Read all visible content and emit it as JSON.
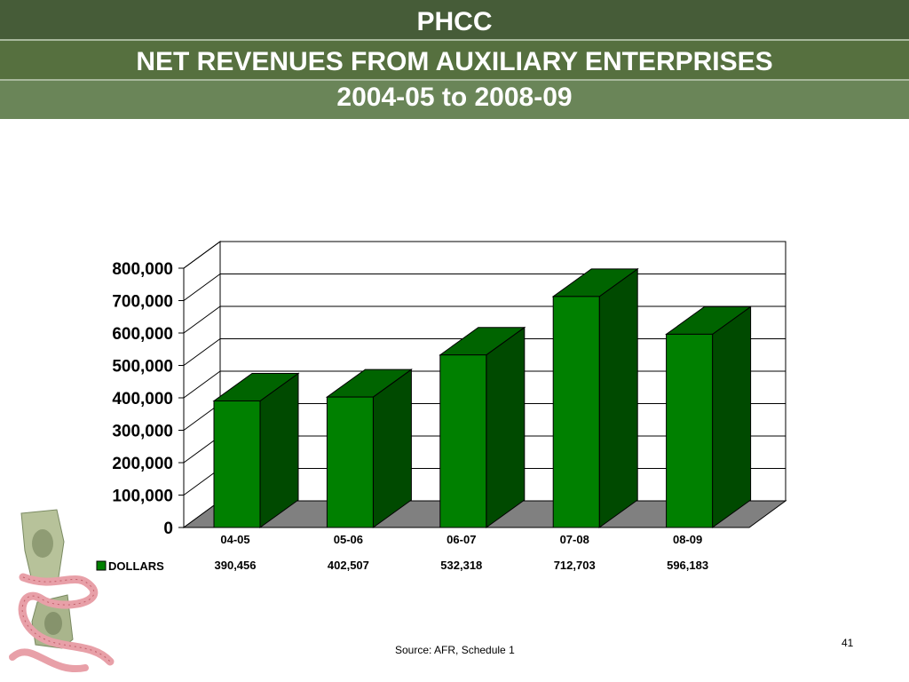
{
  "title": {
    "line1": "PHCC",
    "line2": "NET REVENUES FROM AUXILIARY ENTERPRISES",
    "line3": "2004-05 to 2008-09"
  },
  "chart_data": {
    "type": "bar",
    "style": "3d-column",
    "categories": [
      "04-05",
      "05-06",
      "06-07",
      "07-08",
      "08-09"
    ],
    "series": [
      {
        "name": "DOLLARS",
        "values": [
          390456,
          402507,
          532318,
          712703,
          596183
        ],
        "value_labels": [
          "390,456",
          "402,507",
          "532,318",
          "712,703",
          "596,183"
        ],
        "color": "#008000"
      }
    ],
    "yticks": [
      "0",
      "100,000",
      "200,000",
      "300,000",
      "400,000",
      "500,000",
      "600,000",
      "700,000",
      "800,000"
    ],
    "ylim": [
      0,
      800000
    ],
    "grid": true,
    "legend": "data-table-below"
  },
  "colors": {
    "bar_front": "#008000",
    "bar_side": "#004a00",
    "bar_top": "#006400",
    "floor": "#808080"
  },
  "footer": {
    "source": "Source: AFR, Schedule 1",
    "page_number": "41"
  },
  "decoration": "dollar-bill-measuring-tape-image"
}
